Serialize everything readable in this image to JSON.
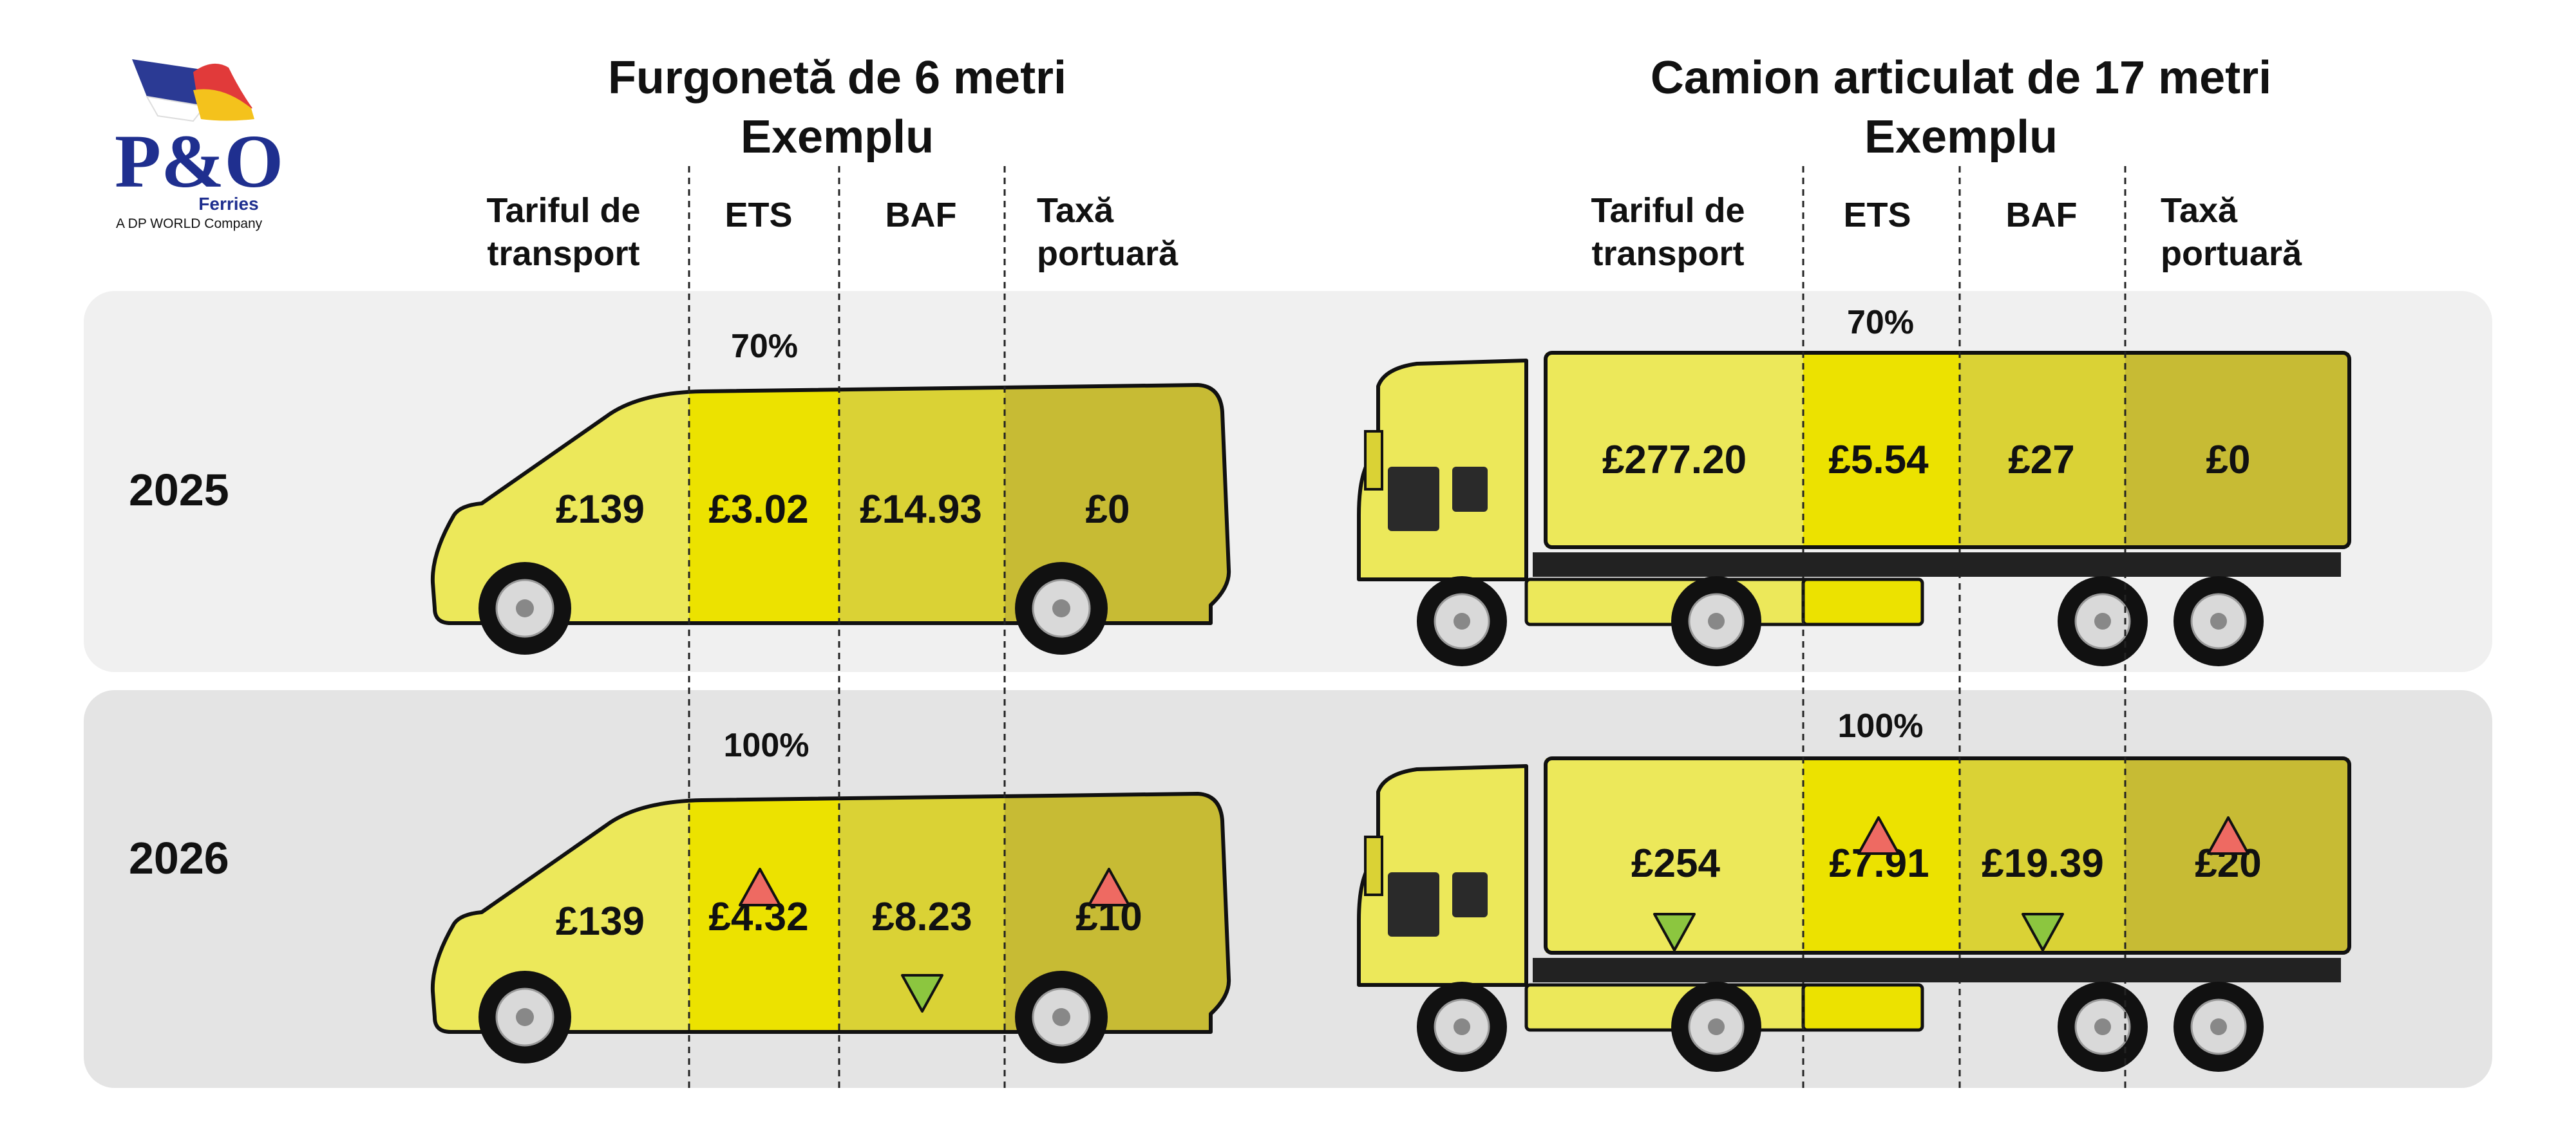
{
  "logo": {
    "brand": "P&O",
    "sub": "Ferries",
    "tagline": "A DP WORLD Company"
  },
  "columns": [
    "Tariful de transport",
    "ETS",
    "BAF",
    "Taxă portuară"
  ],
  "colors": {
    "zone_transport": "#ece85a",
    "zone_ets": "#ece200",
    "zone_baf": "#dad235",
    "zone_port": "#c7bb34",
    "panel_2025": "#f0f0f0",
    "panel_2026": "#e4e4e4",
    "arrow_up": "#ee6a62",
    "arrow_down": "#8cc63f"
  },
  "van": {
    "title_line1": "Furgonetă de 6 metri",
    "title_line2": "Exemplu",
    "headers": {
      "transport_line1": "Tariful de",
      "transport_line2": "transport",
      "ets": "ETS",
      "baf": "BAF",
      "port_line1": "Taxă",
      "port_line2": "portuară"
    },
    "rows": [
      {
        "year": "2025",
        "ets_share": "70%",
        "transport": "£139",
        "ets": "£3.02",
        "baf": "£14.93",
        "port": "£0",
        "trends": {
          "transport": "",
          "ets": "",
          "baf": "",
          "port": ""
        }
      },
      {
        "year": "2026",
        "ets_share": "100%",
        "transport": "£139",
        "ets": "£4.32",
        "baf": "£8.23",
        "port": "£10",
        "trends": {
          "transport": "",
          "ets": "up",
          "baf": "down",
          "port": "up"
        }
      }
    ]
  },
  "truck": {
    "title_line1": "Camion articulat de 17 metri",
    "title_line2": "Exemplu",
    "headers": {
      "transport_line1": "Tariful de",
      "transport_line2": "transport",
      "ets": "ETS",
      "baf": "BAF",
      "port_line1": "Taxă",
      "port_line2": "portuară"
    },
    "rows": [
      {
        "year": "2025",
        "ets_share": "70%",
        "transport": "£277.20",
        "ets": "£5.54",
        "baf": "£27",
        "port": "£0",
        "trends": {
          "transport": "",
          "ets": "",
          "baf": "",
          "port": ""
        }
      },
      {
        "year": "2026",
        "ets_share": "100%",
        "transport": "£254",
        "ets": "£7.91",
        "baf": "£19.39",
        "port": "£20",
        "trends": {
          "transport": "down",
          "ets": "up",
          "baf": "down",
          "port": "up"
        }
      }
    ]
  }
}
